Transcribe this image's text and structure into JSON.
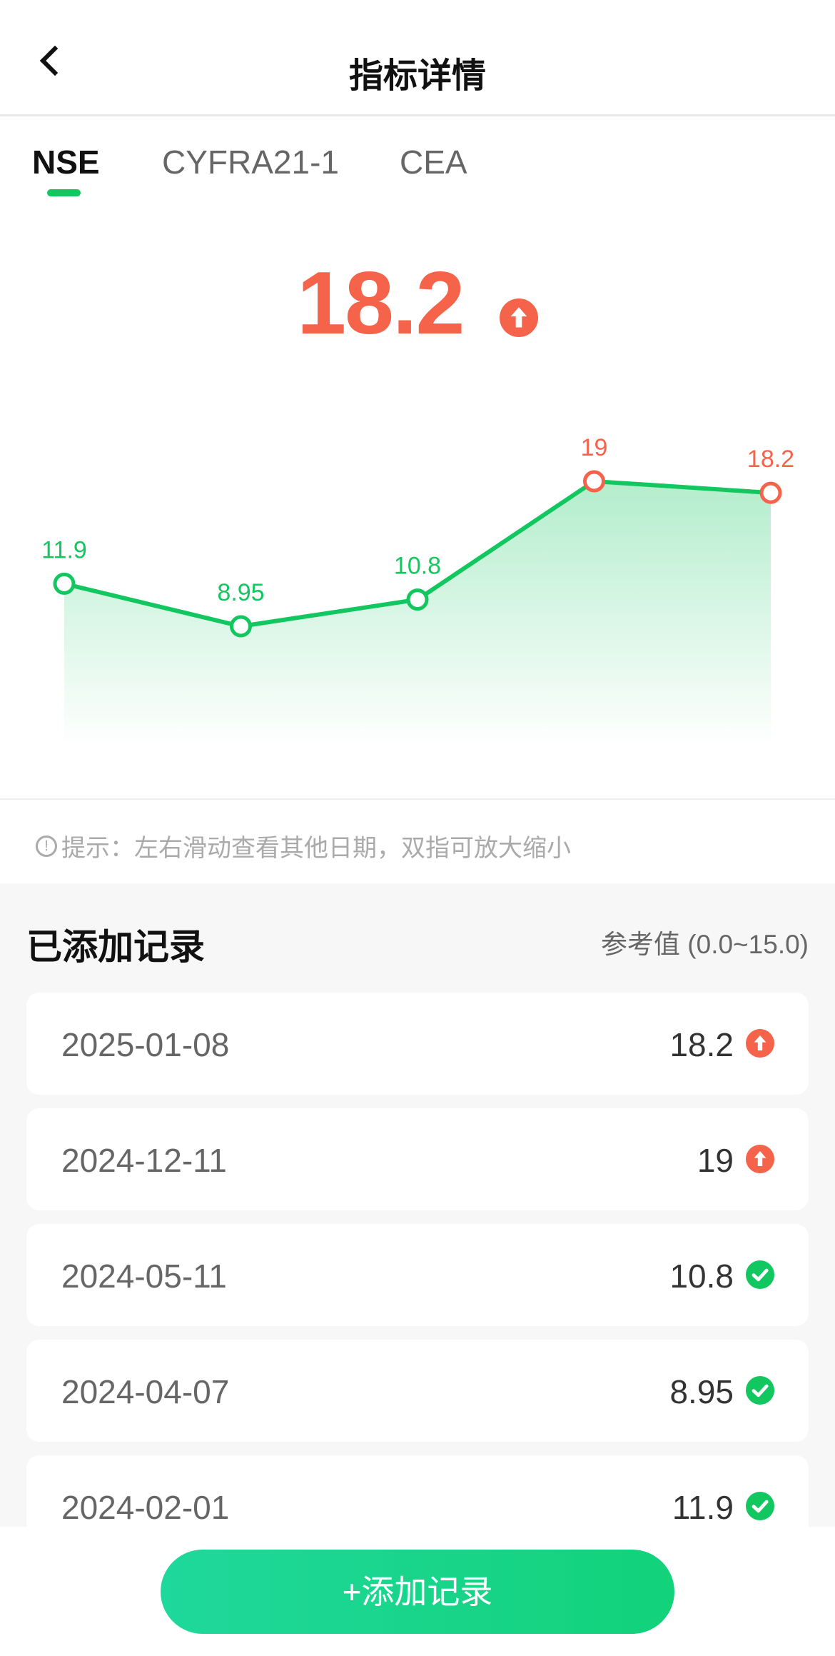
{
  "header": {
    "title": "指标详情",
    "back_icon": "chevron-left-icon"
  },
  "tabs": [
    {
      "label": "NSE",
      "active": true
    },
    {
      "label": "CYFRA21-1",
      "active": false
    },
    {
      "label": "CEA",
      "active": false
    }
  ],
  "current": {
    "value": "18.2",
    "status": "high",
    "status_icon": "arrow-up-circle-icon"
  },
  "colors": {
    "normal": "#12c75f",
    "high": "#f5634a",
    "accent": "#12c75f"
  },
  "chart_data": {
    "type": "area",
    "x": [
      "2024-02-01",
      "2024-04-07",
      "2024-05-11",
      "2024-12-11",
      "2025-01-08"
    ],
    "values": [
      11.9,
      8.95,
      10.8,
      19,
      18.2
    ],
    "labels": [
      "11.9",
      "8.95",
      "10.8",
      "19",
      "18.2"
    ],
    "status": [
      "normal",
      "normal",
      "normal",
      "high",
      "high"
    ],
    "reference_range": [
      0.0,
      15.0
    ],
    "grid": false
  },
  "hint": {
    "icon": "info-icon",
    "text": "提示：左右滑动查看其他日期，双指可放大缩小"
  },
  "records": {
    "title": "已添加记录",
    "reference": "参考值 (0.0~15.0)",
    "items": [
      {
        "date": "2025-01-08",
        "value": "18.2",
        "status": "high"
      },
      {
        "date": "2024-12-11",
        "value": "19",
        "status": "high"
      },
      {
        "date": "2024-05-11",
        "value": "10.8",
        "status": "normal"
      },
      {
        "date": "2024-04-07",
        "value": "8.95",
        "status": "normal"
      },
      {
        "date": "2024-02-01",
        "value": "11.9",
        "status": "normal"
      }
    ]
  },
  "add_button": {
    "label": "+添加记录"
  }
}
